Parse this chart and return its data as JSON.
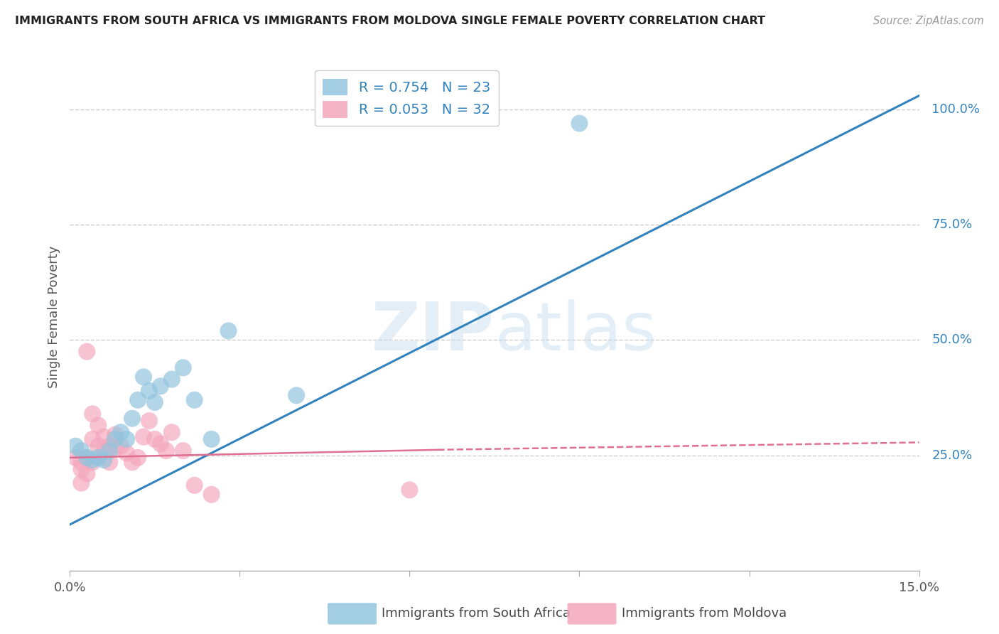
{
  "title": "IMMIGRANTS FROM SOUTH AFRICA VS IMMIGRANTS FROM MOLDOVA SINGLE FEMALE POVERTY CORRELATION CHART",
  "source": "Source: ZipAtlas.com",
  "ylabel": "Single Female Poverty",
  "ytick_right_vals": [
    0.25,
    0.5,
    0.75,
    1.0
  ],
  "ytick_right_labels": [
    "25.0%",
    "50.0%",
    "75.0%",
    "100.0%"
  ],
  "xlim": [
    0.0,
    0.15
  ],
  "ylim": [
    0.0,
    1.1
  ],
  "blue_R": 0.754,
  "blue_N": 23,
  "pink_R": 0.053,
  "pink_N": 32,
  "blue_label": "Immigrants from South Africa",
  "pink_label": "Immigrants from Moldova",
  "blue_color": "#92c5de",
  "pink_color": "#f4a8be",
  "blue_line_color": "#3182bd",
  "pink_line_color": "#e07090",
  "watermark_zip": "ZIP",
  "watermark_atlas": "atlas",
  "blue_scatter_x": [
    0.001,
    0.002,
    0.003,
    0.004,
    0.005,
    0.006,
    0.007,
    0.008,
    0.009,
    0.01,
    0.011,
    0.012,
    0.013,
    0.014,
    0.015,
    0.016,
    0.018,
    0.02,
    0.022,
    0.025,
    0.028,
    0.04,
    0.09
  ],
  "blue_scatter_y": [
    0.27,
    0.26,
    0.245,
    0.24,
    0.245,
    0.24,
    0.26,
    0.285,
    0.3,
    0.285,
    0.33,
    0.37,
    0.42,
    0.39,
    0.365,
    0.4,
    0.415,
    0.44,
    0.37,
    0.285,
    0.52,
    0.38,
    0.97
  ],
  "pink_scatter_x": [
    0.001,
    0.002,
    0.002,
    0.003,
    0.003,
    0.004,
    0.004,
    0.005,
    0.005,
    0.006,
    0.006,
    0.007,
    0.007,
    0.008,
    0.008,
    0.009,
    0.01,
    0.011,
    0.012,
    0.013,
    0.014,
    0.015,
    0.016,
    0.017,
    0.018,
    0.02,
    0.022,
    0.025,
    0.003,
    0.004,
    0.06,
    0.002
  ],
  "pink_scatter_y": [
    0.245,
    0.235,
    0.22,
    0.21,
    0.245,
    0.34,
    0.285,
    0.27,
    0.315,
    0.26,
    0.29,
    0.27,
    0.235,
    0.265,
    0.295,
    0.27,
    0.255,
    0.235,
    0.245,
    0.29,
    0.325,
    0.285,
    0.275,
    0.26,
    0.3,
    0.26,
    0.185,
    0.165,
    0.475,
    0.235,
    0.175,
    0.19
  ],
  "blue_line_x0": 0.0,
  "blue_line_x1": 0.15,
  "blue_line_y0": 0.1,
  "blue_line_y1": 1.03,
  "pink_line_x0": 0.0,
  "pink_line_x1": 0.065,
  "pink_line_x1_dash": 0.15,
  "pink_line_y0": 0.245,
  "pink_line_y1": 0.262,
  "pink_line_y1_dash": 0.278,
  "grid_color": "#cccccc",
  "background_color": "#ffffff"
}
